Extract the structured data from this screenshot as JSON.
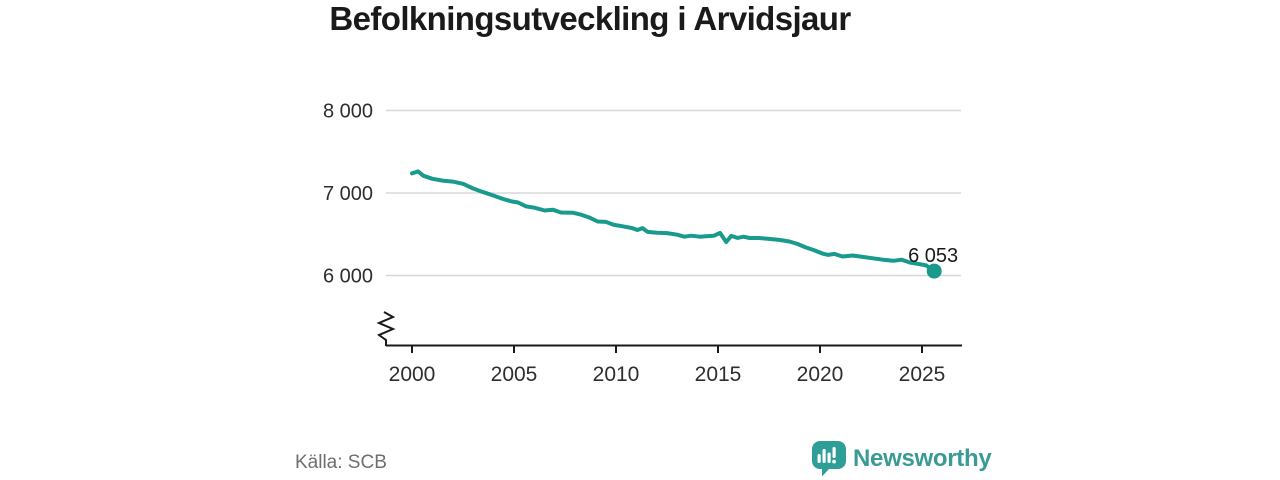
{
  "header": {
    "title": "Befolkningsutveckling i Arvidsjaur"
  },
  "footer": {
    "source": "Källa: SCB",
    "brand": "Newsworthy"
  },
  "colors": {
    "line": "#189a8c",
    "grid": "#d8d8d8",
    "axis": "#1a1a1a",
    "tick_text": "#2e2e2e",
    "muted_text": "#6f6f6f",
    "brand_teal": "#3a9a95",
    "brand_icon": "#2f9e96",
    "value_label_text": "#1a1a1a"
  },
  "chart_data": {
    "type": "line",
    "title": "Befolkningsutveckling i Arvidsjaur",
    "x_axis": {
      "ticks": [
        {
          "value": 2000,
          "label": "2000"
        },
        {
          "value": 2005,
          "label": "2005"
        },
        {
          "value": 2010,
          "label": "2010"
        },
        {
          "value": 2015,
          "label": "2015"
        },
        {
          "value": 2020,
          "label": "2020"
        },
        {
          "value": 2025,
          "label": "2025"
        }
      ]
    },
    "y_axis": {
      "ticks": [
        {
          "value": 6000,
          "label": "6 000"
        },
        {
          "value": 7000,
          "label": "7 000"
        },
        {
          "value": 8000,
          "label": "8 000"
        }
      ],
      "axis_break": true
    },
    "layout_hints": {
      "grid": "horizontal-only",
      "legend": "none",
      "y_range_shown": [
        5800,
        8000
      ],
      "x_range_shown": [
        2000,
        2025.6
      ]
    },
    "end_label": "6 053",
    "end_value": 6053,
    "series": [
      {
        "color": "#189a8c",
        "points": [
          [
            2000.0,
            7238
          ],
          [
            2000.3,
            7262
          ],
          [
            2000.55,
            7210
          ],
          [
            2001.0,
            7172
          ],
          [
            2001.5,
            7150
          ],
          [
            2002.0,
            7138
          ],
          [
            2002.5,
            7112
          ],
          [
            2003.0,
            7055
          ],
          [
            2003.5,
            7010
          ],
          [
            2004.0,
            6968
          ],
          [
            2004.5,
            6925
          ],
          [
            2004.9,
            6897
          ],
          [
            2005.2,
            6885
          ],
          [
            2005.6,
            6838
          ],
          [
            2006.0,
            6822
          ],
          [
            2006.5,
            6788
          ],
          [
            2006.9,
            6797
          ],
          [
            2007.3,
            6764
          ],
          [
            2007.9,
            6760
          ],
          [
            2008.3,
            6737
          ],
          [
            2008.7,
            6702
          ],
          [
            2009.1,
            6655
          ],
          [
            2009.5,
            6650
          ],
          [
            2009.9,
            6613
          ],
          [
            2010.3,
            6598
          ],
          [
            2010.8,
            6574
          ],
          [
            2011.05,
            6552
          ],
          [
            2011.3,
            6574
          ],
          [
            2011.55,
            6528
          ],
          [
            2012.0,
            6517
          ],
          [
            2012.5,
            6514
          ],
          [
            2013.0,
            6494
          ],
          [
            2013.35,
            6470
          ],
          [
            2013.7,
            6482
          ],
          [
            2014.1,
            6470
          ],
          [
            2014.5,
            6477
          ],
          [
            2014.8,
            6482
          ],
          [
            2015.1,
            6516
          ],
          [
            2015.4,
            6406
          ],
          [
            2015.65,
            6480
          ],
          [
            2015.95,
            6456
          ],
          [
            2016.25,
            6470
          ],
          [
            2016.55,
            6455
          ],
          [
            2017.0,
            6455
          ],
          [
            2017.5,
            6444
          ],
          [
            2018.0,
            6432
          ],
          [
            2018.5,
            6412
          ],
          [
            2018.9,
            6382
          ],
          [
            2019.3,
            6340
          ],
          [
            2019.7,
            6308
          ],
          [
            2020.1,
            6268
          ],
          [
            2020.4,
            6250
          ],
          [
            2020.7,
            6262
          ],
          [
            2021.1,
            6230
          ],
          [
            2021.6,
            6242
          ],
          [
            2022.1,
            6225
          ],
          [
            2022.6,
            6208
          ],
          [
            2023.1,
            6192
          ],
          [
            2023.6,
            6178
          ],
          [
            2024.0,
            6192
          ],
          [
            2024.4,
            6158
          ],
          [
            2024.8,
            6140
          ],
          [
            2025.2,
            6122
          ],
          [
            2025.6,
            6053
          ]
        ]
      }
    ]
  }
}
